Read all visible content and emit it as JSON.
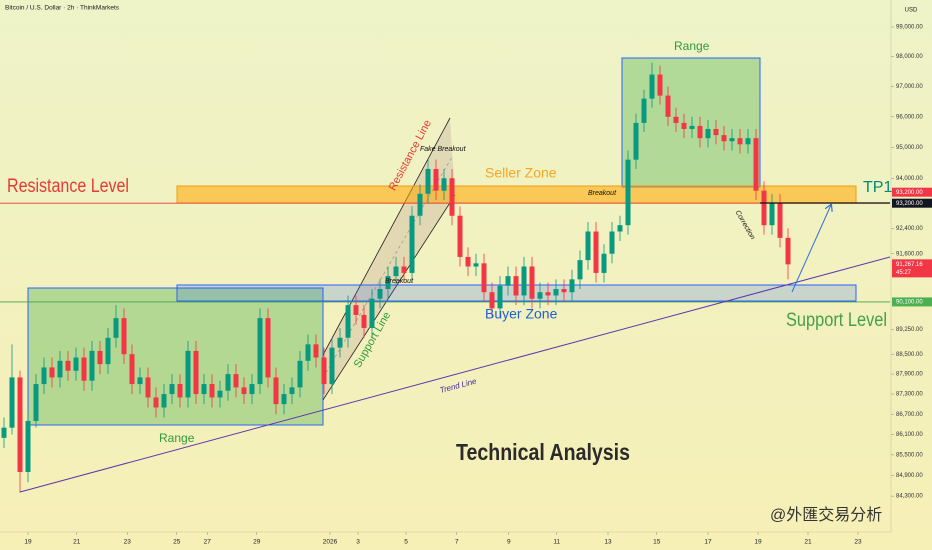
{
  "chart_data": {
    "type": "candlestick",
    "title": "Bitcoin / U.S. Dollar · 2h · ThinkMarkets",
    "currency": "USD",
    "subtitle": "Technical Analysis",
    "watermark": "@外匯交易分析",
    "log_scale": true,
    "up_color": "#089981",
    "down_color": "#f23645",
    "xlim": [
      -0.5,
      110.75
    ],
    "ylim": [
      83270,
      99920
    ],
    "xticks": [
      {
        "value": 3,
        "label": "19"
      },
      {
        "value": 9.1,
        "label": "21"
      },
      {
        "value": 15.4,
        "label": "23"
      },
      {
        "value": 21.6,
        "label": "25"
      },
      {
        "value": 25.4,
        "label": "27"
      },
      {
        "value": 31.6,
        "label": "29"
      },
      {
        "value": 40.75,
        "label": "2026"
      },
      {
        "value": 44.25,
        "label": "3"
      },
      {
        "value": 50.25,
        "label": "5"
      },
      {
        "value": 56.6,
        "label": "7"
      },
      {
        "value": 63.1,
        "label": "9"
      },
      {
        "value": 69.1,
        "label": "11"
      },
      {
        "value": 75.5,
        "label": "13"
      },
      {
        "value": 81.6,
        "label": "15"
      },
      {
        "value": 88,
        "label": "17"
      },
      {
        "value": 94.25,
        "label": "19"
      },
      {
        "value": 100.5,
        "label": "21"
      },
      {
        "value": 106.75,
        "label": "23"
      }
    ],
    "yticks": [
      {
        "value": 99000,
        "label": "99,000.00"
      },
      {
        "value": 98000,
        "label": "98,000.00"
      },
      {
        "value": 97000,
        "label": "97,000.00"
      },
      {
        "value": 96000,
        "label": "96,000.00"
      },
      {
        "value": 95000,
        "label": "95,000.00"
      },
      {
        "value": 94000,
        "label": "94,000.00"
      },
      {
        "value": 92400,
        "label": "92,400.00"
      },
      {
        "value": 91600,
        "label": "91,600.00"
      },
      {
        "value": 89250,
        "label": "89,250.00"
      },
      {
        "value": 88500,
        "label": "88,500.00"
      },
      {
        "value": 87900,
        "label": "87,900.00"
      },
      {
        "value": 87300,
        "label": "87,300.00"
      },
      {
        "value": 86700,
        "label": "86,700.00"
      },
      {
        "value": 86100,
        "label": "86,100.00"
      },
      {
        "value": 85500,
        "label": "85,500.00"
      },
      {
        "value": 84900,
        "label": "84,900.00"
      },
      {
        "value": 84300,
        "label": "84,300.00"
      }
    ],
    "price_markers": [
      {
        "value": 93200,
        "label": "93,200.00",
        "color": "#131722"
      },
      {
        "value": 93200,
        "label": "93,200.00",
        "color": "#f23645"
      },
      {
        "value": 91267.16,
        "label": "91,267.16",
        "color": "#f23645",
        "countdown": "45:27"
      },
      {
        "value": 90100,
        "label": "90,100.00",
        "color": "#4caf50"
      }
    ],
    "levels": [
      {
        "value": 93200,
        "color": "#e53935"
      },
      {
        "value": 90100,
        "color": "#43a047"
      }
    ],
    "annotations": {
      "resistance_level": "Resistance Level",
      "support_level": "Support Level",
      "tp1": "TP1",
      "seller_zone": "Seller Zone",
      "buyer_zone": "Buyer Zone",
      "range_top": "Range",
      "range_bottom": "Range",
      "fake_breakout": "Fake Breakout",
      "breakout_1": "Breakout",
      "breakout_2": "Breakout",
      "resistance_line": "Resistance Line",
      "support_line": "Support Line",
      "trend_line": "Trend Line",
      "correction": "Correction"
    },
    "open": [
      86000,
      86300,
      87800,
      85000,
      86500,
      87600,
      88100,
      87800,
      88300,
      88000,
      88400,
      87700,
      88600,
      88200,
      89000,
      89600,
      88500,
      87600,
      87800,
      87200,
      86900,
      87300,
      87600,
      87200,
      88600,
      87300,
      87600,
      87200,
      87400,
      87900,
      87500,
      87300,
      87600,
      89600,
      87800,
      87000,
      87300,
      87500,
      88300,
      88800,
      88400,
      87600,
      88700,
      89000,
      90000,
      89700,
      89300,
      90200,
      90500,
      90900,
      91200,
      91000,
      92800,
      93500,
      94300,
      93600,
      94000,
      92800,
      91500,
      91200,
      91300,
      90400,
      89900,
      90600,
      90900,
      90300,
      91200,
      90200,
      90400,
      90300,
      90500,
      90400,
      90800,
      91400,
      92300,
      91000,
      91600,
      92300,
      92500,
      94600,
      95800,
      96600,
      97400,
      96700,
      96000,
      95800,
      95600,
      95700,
      95300,
      95600,
      95400,
      95200,
      95300,
      95100,
      95300,
      93600,
      92500,
      93200,
      92100
    ],
    "high": [
      86600,
      88800,
      88000,
      86800,
      87900,
      88400,
      88400,
      88600,
      88600,
      88700,
      88700,
      88900,
      88900,
      89300,
      90000,
      89900,
      88800,
      88100,
      88100,
      87500,
      87600,
      87900,
      87900,
      88900,
      88900,
      87900,
      87900,
      87700,
      88200,
      88200,
      87800,
      87900,
      89900,
      89900,
      88100,
      87600,
      87800,
      88600,
      89100,
      89100,
      88700,
      89000,
      89300,
      90300,
      90300,
      90000,
      90500,
      90800,
      91200,
      91500,
      91500,
      93100,
      93800,
      94600,
      94600,
      94300,
      94300,
      93100,
      91800,
      91600,
      91600,
      90700,
      90900,
      91200,
      91200,
      91500,
      91500,
      90700,
      90700,
      90800,
      90800,
      91100,
      91700,
      92600,
      92600,
      91900,
      92600,
      92800,
      94900,
      96100,
      96900,
      97800,
      97700,
      97000,
      96300,
      96100,
      96000,
      96000,
      95900,
      95900,
      95700,
      95600,
      95600,
      95600,
      95600,
      93900,
      93500,
      93500,
      92400
    ],
    "low": [
      85700,
      86100,
      84400,
      84700,
      86300,
      87300,
      87500,
      87500,
      87700,
      87700,
      87400,
      87400,
      87900,
      87900,
      88700,
      88200,
      87300,
      87300,
      86900,
      86600,
      86600,
      87000,
      86900,
      86900,
      87000,
      87000,
      86900,
      86900,
      87100,
      87200,
      87000,
      87000,
      87300,
      87500,
      86700,
      86700,
      87000,
      87200,
      88000,
      88100,
      87300,
      87300,
      88400,
      88700,
      89400,
      89000,
      89000,
      89900,
      90200,
      90600,
      90700,
      90700,
      92500,
      93200,
      93300,
      93300,
      92500,
      91200,
      90900,
      90900,
      90100,
      89600,
      89600,
      90300,
      90000,
      90000,
      89900,
      89900,
      90000,
      90000,
      90100,
      90100,
      90500,
      91100,
      90700,
      90700,
      91300,
      92000,
      92200,
      94300,
      95500,
      96300,
      96400,
      95700,
      95500,
      95300,
      95300,
      95000,
      95000,
      95100,
      94900,
      94900,
      94800,
      94800,
      93300,
      92200,
      92200,
      91800,
      90800
    ],
    "close": [
      86300,
      87800,
      85000,
      86500,
      87600,
      88100,
      87800,
      88300,
      88000,
      88400,
      87700,
      88600,
      88200,
      89000,
      89600,
      88500,
      87600,
      87800,
      87200,
      86900,
      87300,
      87600,
      87200,
      88600,
      87300,
      87600,
      87200,
      87400,
      87900,
      87500,
      87300,
      87600,
      89600,
      87800,
      87000,
      87300,
      87500,
      88300,
      88800,
      88400,
      87600,
      88700,
      89000,
      90000,
      89700,
      89300,
      90200,
      90500,
      90900,
      91200,
      91000,
      92800,
      93500,
      94300,
      93600,
      94000,
      92800,
      91500,
      91200,
      91300,
      90400,
      89900,
      90600,
      90900,
      90300,
      91200,
      90200,
      90400,
      90300,
      90500,
      90400,
      90800,
      91400,
      92300,
      91000,
      91600,
      92300,
      92500,
      94600,
      95800,
      96600,
      97400,
      96700,
      96000,
      95800,
      95600,
      95700,
      95300,
      95600,
      95400,
      95200,
      95300,
      95100,
      95300,
      93600,
      92500,
      93200,
      92100,
      91267.16
    ]
  }
}
